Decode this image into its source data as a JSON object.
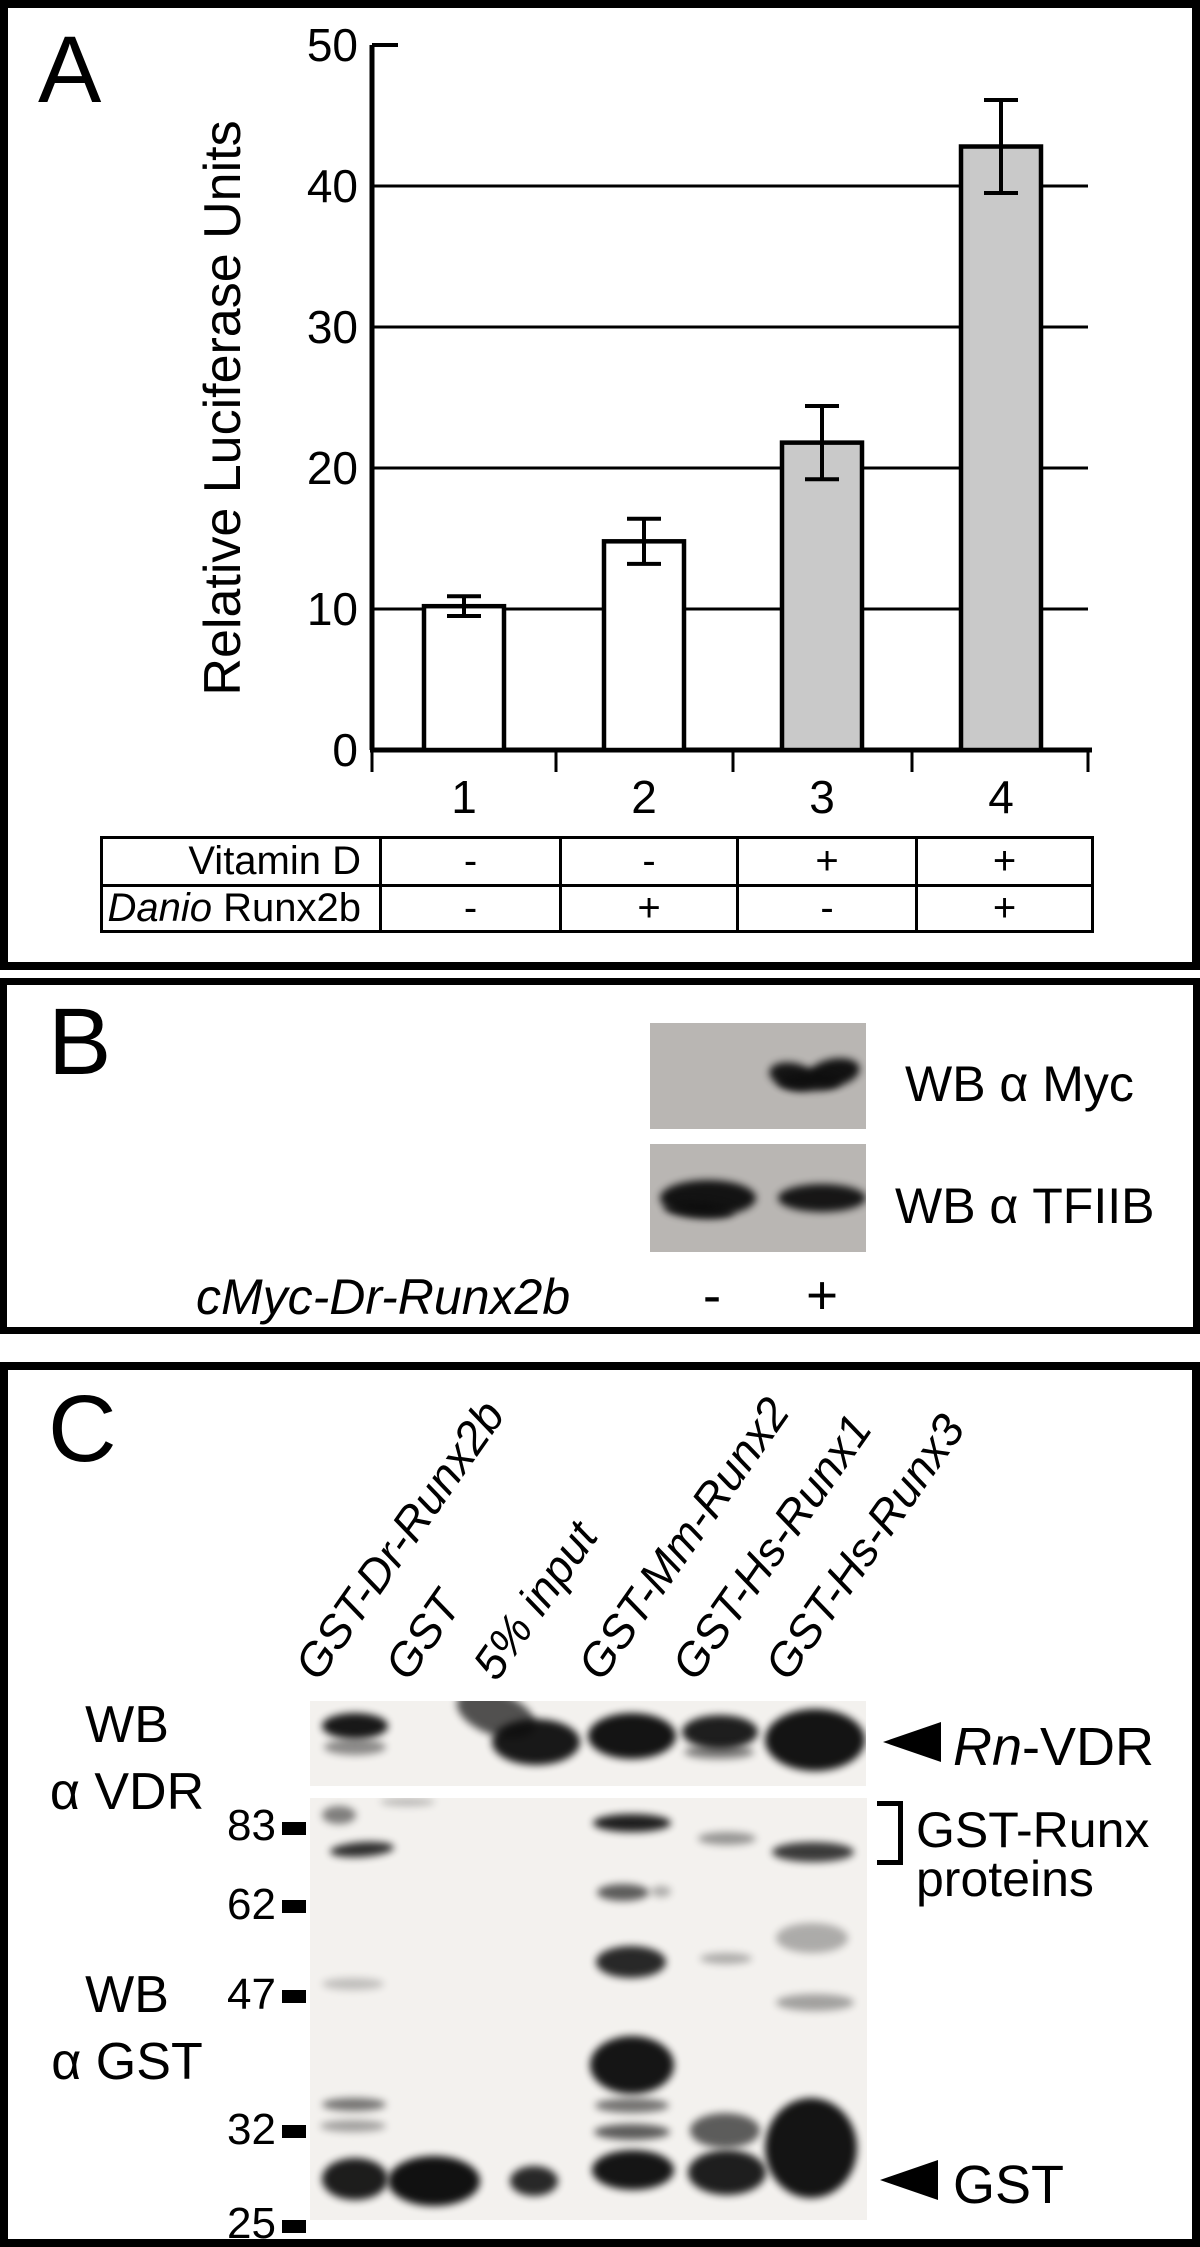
{
  "panelA": {
    "label": "A",
    "chart_data": {
      "type": "bar",
      "title": "",
      "ylabel": "Relative Luciferase Units",
      "categories": [
        "1",
        "2",
        "3",
        "4"
      ],
      "values": [
        10.2,
        14.8,
        21.8,
        42.8
      ],
      "errors": [
        0.7,
        1.6,
        2.6,
        3.3
      ],
      "bar_colors": [
        "#ffffff",
        "#ffffff",
        "#c9c9c9",
        "#c9c9c9"
      ],
      "ylim": [
        0,
        50
      ],
      "yticks": [
        0,
        10,
        20,
        30,
        40,
        50
      ],
      "grid": true,
      "legend": null
    },
    "table": {
      "rows": [
        {
          "label_italic": "",
          "label": "Vitamin D",
          "values": [
            "-",
            "-",
            "+",
            "+"
          ]
        },
        {
          "label_italic": "Danio",
          "label": " Runx2b",
          "values": [
            "-",
            "+",
            "-",
            "+"
          ]
        }
      ]
    }
  },
  "panelB": {
    "label": "B",
    "blot1_label": "WB α Myc",
    "blot2_label": "WB α TFIIB",
    "row_label": "cMyc-Dr-Runx2b",
    "minus": "-",
    "plus": "+",
    "blot1_bands": [
      [
        119,
        40,
        48,
        26,
        0.95,
        12
      ],
      [
        156,
        36,
        54,
        28,
        0.97,
        -12
      ],
      [
        128,
        50,
        62,
        18,
        0.8,
        0
      ]
    ],
    "blot2_bands": [
      [
        10,
        36,
        96,
        36,
        0.96,
        0
      ],
      [
        14,
        58,
        70,
        16,
        0.85,
        4
      ],
      [
        128,
        40,
        88,
        28,
        0.94,
        0
      ]
    ]
  },
  "panelC": {
    "label": "C",
    "lane_labels": [
      "GST-Dr-Runx2b",
      "GST",
      "5% input",
      "GST-Mm-Runx2",
      "GST-Hs-Runx1",
      "GST-Hs-Runx3"
    ],
    "wb_vdr_line1": "WB",
    "wb_vdr_line2": "α VDR",
    "wb_gst_line1": "WB",
    "wb_gst_line2": "α GST",
    "markers": [
      "83",
      "62",
      "47",
      "32",
      "25"
    ],
    "arrow1_label_italic": "Rn",
    "arrow1_label_rest": "-VDR",
    "bracket_label_line1": "GST-Runx",
    "bracket_label_line2": "proteins",
    "arrow2_label": "GST",
    "vdr_blot_bands": [
      [
        12,
        12,
        66,
        26,
        0.95,
        0
      ],
      [
        14,
        38,
        62,
        16,
        0.45,
        0
      ],
      [
        145,
        -8,
        82,
        42,
        0.7,
        20
      ],
      [
        182,
        18,
        88,
        46,
        0.95,
        0
      ],
      [
        278,
        12,
        88,
        46,
        0.97,
        0
      ],
      [
        372,
        14,
        76,
        34,
        0.92,
        0
      ],
      [
        374,
        44,
        70,
        14,
        0.5,
        0
      ],
      [
        455,
        8,
        100,
        62,
        0.97,
        0
      ]
    ],
    "gst_blot_bands": [
      [
        12,
        8,
        34,
        18,
        0.5,
        0
      ],
      [
        20,
        44,
        64,
        15,
        0.85,
        -4
      ],
      [
        12,
        180,
        62,
        12,
        0.22,
        0
      ],
      [
        12,
        300,
        64,
        13,
        0.55,
        0
      ],
      [
        10,
        322,
        66,
        12,
        0.35,
        0
      ],
      [
        12,
        360,
        66,
        42,
        0.93,
        0
      ],
      [
        78,
        358,
        92,
        50,
        0.98,
        0
      ],
      [
        70,
        0,
        55,
        8,
        0.25,
        0
      ],
      [
        200,
        368,
        48,
        30,
        0.88,
        0
      ],
      [
        283,
        16,
        78,
        18,
        0.92,
        0
      ],
      [
        287,
        86,
        52,
        17,
        0.65,
        0
      ],
      [
        341,
        88,
        20,
        11,
        0.3,
        0
      ],
      [
        286,
        148,
        70,
        32,
        0.88,
        0
      ],
      [
        280,
        238,
        84,
        58,
        0.96,
        0
      ],
      [
        285,
        300,
        74,
        15,
        0.55,
        0
      ],
      [
        284,
        326,
        76,
        16,
        0.65,
        0
      ],
      [
        282,
        352,
        82,
        40,
        0.96,
        0
      ],
      [
        388,
        34,
        58,
        13,
        0.4,
        0
      ],
      [
        390,
        155,
        52,
        11,
        0.3,
        0
      ],
      [
        380,
        315,
        70,
        35,
        0.65,
        0
      ],
      [
        378,
        352,
        78,
        45,
        0.92,
        0
      ],
      [
        462,
        44,
        82,
        20,
        0.8,
        0
      ],
      [
        466,
        125,
        72,
        30,
        0.3,
        0
      ],
      [
        466,
        196,
        78,
        17,
        0.35,
        0
      ],
      [
        455,
        300,
        92,
        100,
        0.97,
        0
      ]
    ]
  }
}
